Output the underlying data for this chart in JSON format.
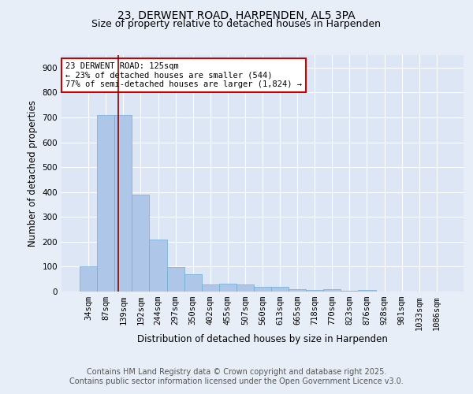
{
  "title_line1": "23, DERWENT ROAD, HARPENDEN, AL5 3PA",
  "title_line2": "Size of property relative to detached houses in Harpenden",
  "xlabel": "Distribution of detached houses by size in Harpenden",
  "ylabel": "Number of detached properties",
  "categories": [
    "34sqm",
    "87sqm",
    "139sqm",
    "192sqm",
    "244sqm",
    "297sqm",
    "350sqm",
    "402sqm",
    "455sqm",
    "507sqm",
    "560sqm",
    "613sqm",
    "665sqm",
    "718sqm",
    "770sqm",
    "823sqm",
    "876sqm",
    "928sqm",
    "981sqm",
    "1033sqm",
    "1086sqm"
  ],
  "values": [
    100,
    710,
    710,
    390,
    210,
    97,
    70,
    30,
    33,
    30,
    20,
    20,
    8,
    5,
    10,
    3,
    5,
    0,
    0,
    0,
    0
  ],
  "bar_color": "#aec6e8",
  "bar_edge_color": "#6baed6",
  "vline_color": "#8b0000",
  "annotation_text": "23 DERWENT ROAD: 125sqm\n← 23% of detached houses are smaller (544)\n77% of semi-detached houses are larger (1,824) →",
  "annotation_box_color": "#ffffff",
  "annotation_box_edge": "#cc0000",
  "ylim": [
    0,
    950
  ],
  "yticks": [
    0,
    100,
    200,
    300,
    400,
    500,
    600,
    700,
    800,
    900
  ],
  "footer_text": "Contains HM Land Registry data © Crown copyright and database right 2025.\nContains public sector information licensed under the Open Government Licence v3.0.",
  "background_color": "#e8eef8",
  "plot_bg_color": "#dde6f5",
  "grid_color": "#ffffff",
  "title_fontsize": 10,
  "subtitle_fontsize": 9,
  "label_fontsize": 8.5,
  "tick_fontsize": 7.5,
  "footer_fontsize": 7
}
